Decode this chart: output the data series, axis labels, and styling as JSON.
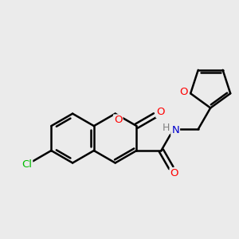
{
  "background_color": "#ebebeb",
  "bond_color": "#000000",
  "bond_width": 1.8,
  "atom_colors": {
    "O": "#ff0000",
    "N": "#0000cd",
    "Cl": "#00bb00",
    "H_gray": "#808080"
  },
  "font_size": 9.5,
  "fig_width": 3.0,
  "fig_height": 3.0,
  "dpi": 100
}
